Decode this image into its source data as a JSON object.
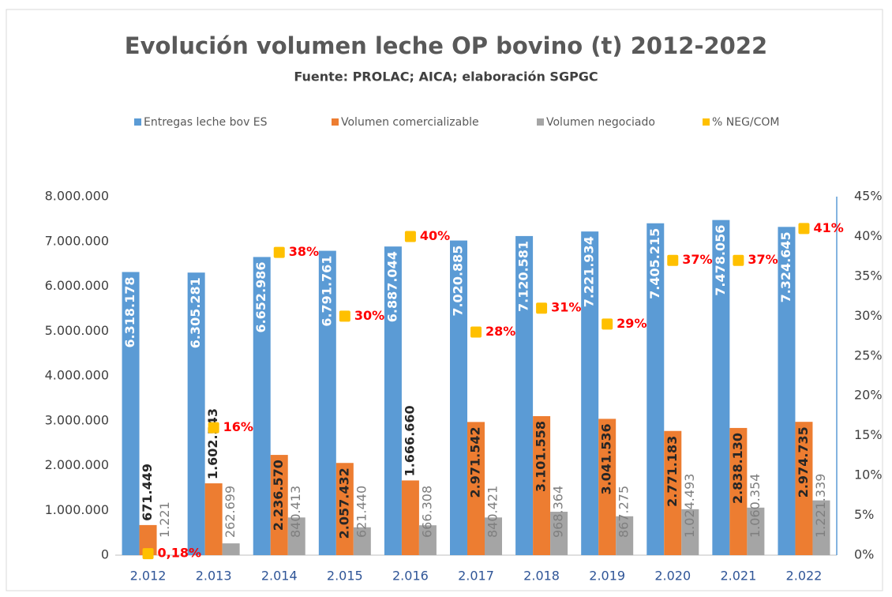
{
  "chart_data": {
    "type": "bar",
    "title": "Evolución volumen leche OP bovino (t) 2012-2022",
    "subtitle": "Fuente: PROLAC; AICA; elaboración SGPGC",
    "categories": [
      "2.012",
      "2.013",
      "2.014",
      "2.015",
      "2.016",
      "2.017",
      "2.018",
      "2.019",
      "2.020",
      "2.021",
      "2.022"
    ],
    "series": [
      {
        "name": "Entregas leche bov ES",
        "type": "bar",
        "color": "#5b9bd5",
        "values": [
          6318178,
          6305281,
          6652986,
          6791761,
          6887044,
          7020885,
          7120581,
          7221934,
          7405215,
          7478056,
          7324645
        ],
        "value_labels": [
          "6.318.178",
          "6.305.281",
          "6.652.986",
          "6.791.761",
          "6.887.044",
          "7.020.885",
          "7.120.581",
          "7.221.934",
          "7.405.215",
          "7.478.056",
          "7.324.645"
        ]
      },
      {
        "name": "Volumen comercializable",
        "type": "bar",
        "color": "#ed7d31",
        "values": [
          671449,
          1602543,
          2236570,
          2057432,
          1666660,
          2971542,
          3101558,
          3041536,
          2771183,
          2838130,
          2974735
        ],
        "value_labels": [
          "671.449",
          "1.602.543",
          "2.236.570",
          "2.057.432",
          "1.666.660",
          "2.971.542",
          "3.101.558",
          "3.041.536",
          "2.771.183",
          "2.838.130",
          "2.974.735"
        ]
      },
      {
        "name": "Volumen negociado",
        "type": "bar",
        "color": "#a5a5a5",
        "values": [
          1221,
          262699,
          840413,
          621440,
          666308,
          840421,
          968364,
          867275,
          1024493,
          1060354,
          1221339
        ],
        "value_labels": [
          "1.221",
          "262.699",
          "840.413",
          "621.440",
          "666.308",
          "840.421",
          "968.364",
          "867.275",
          "1.024.493",
          "1.060.354",
          "1.221.339"
        ]
      },
      {
        "name": "% NEG/COM",
        "type": "scatter",
        "axis": "y2",
        "color": "#ffc000",
        "values": [
          0.18,
          16,
          38,
          30,
          40,
          28,
          31,
          29,
          37,
          37,
          41
        ],
        "value_labels": [
          "0,18%",
          "16%",
          "38%",
          "30%",
          "40%",
          "28%",
          "31%",
          "29%",
          "37%",
          "37%",
          "41%"
        ]
      }
    ],
    "ylim": [
      0,
      8000000
    ],
    "yticks": [
      0,
      {
        "value": 1000000,
        "label": "1.000.000"
      },
      {
        "value": 2000000,
        "label": "2.000.000"
      },
      {
        "value": 3000000,
        "label": "3.000.000"
      },
      {
        "value": 4000000,
        "label": "4.000.000"
      },
      {
        "value": 5000000,
        "label": "5.000.000"
      },
      {
        "value": 6000000,
        "label": "6.000.000"
      },
      {
        "value": 7000000,
        "label": "7.000.000"
      },
      {
        "value": 8000000,
        "label": "8.000.000"
      }
    ],
    "y2lim": [
      0,
      45
    ],
    "y2ticks": [
      {
        "value": 0,
        "label": "0%"
      },
      {
        "value": 5,
        "label": "5%"
      },
      {
        "value": 10,
        "label": "10%"
      },
      {
        "value": 15,
        "label": "15%"
      },
      {
        "value": 20,
        "label": "20%"
      },
      {
        "value": 25,
        "label": "25%"
      },
      {
        "value": 30,
        "label": "30%"
      },
      {
        "value": 35,
        "label": "35%"
      },
      {
        "value": 40,
        "label": "40%"
      },
      {
        "value": 45,
        "label": "45%"
      }
    ],
    "grid": false,
    "legend": "top"
  }
}
